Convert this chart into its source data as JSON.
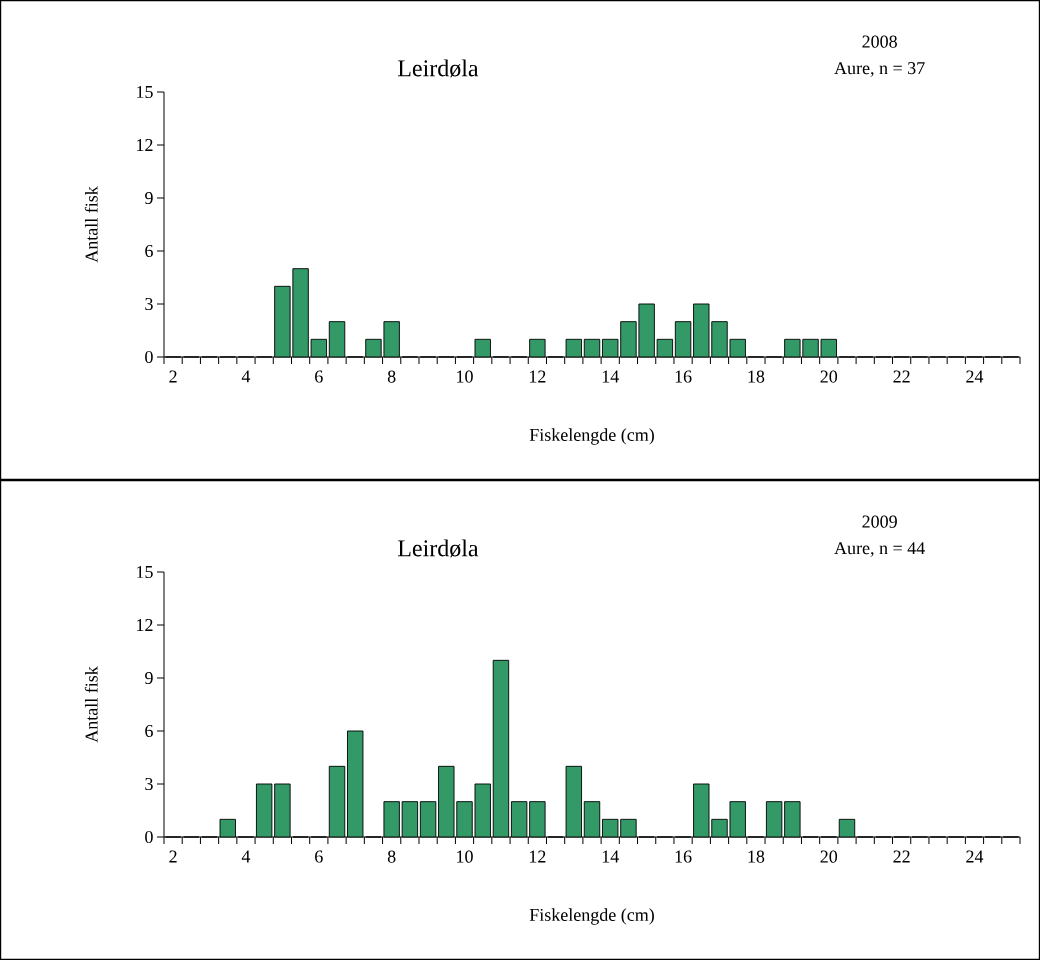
{
  "chart_data": [
    {
      "type": "bar",
      "title": "Leirdøla",
      "annotations": [
        "2008",
        "Aure, n = 37"
      ],
      "xlabel": "Fiskelengde (cm)",
      "ylabel": "Antall fisk",
      "categories": [
        "2",
        null,
        null,
        null,
        "4",
        null,
        null,
        null,
        "6",
        null,
        null,
        null,
        "8",
        null,
        null,
        null,
        "10",
        null,
        null,
        null,
        "12",
        null,
        null,
        null,
        "14",
        null,
        null,
        null,
        "16",
        null,
        null,
        null,
        "18",
        null,
        null,
        null,
        "20",
        null,
        null,
        null,
        "22",
        null,
        null,
        null,
        "24",
        null,
        null
      ],
      "values": [
        0,
        0,
        0,
        0,
        0,
        0,
        4,
        5,
        1,
        2,
        0,
        1,
        2,
        0,
        0,
        0,
        0,
        1,
        0,
        0,
        1,
        0,
        1,
        1,
        1,
        2,
        3,
        1,
        2,
        3,
        2,
        1,
        0,
        0,
        1,
        1,
        1,
        0,
        0,
        0,
        0,
        0,
        0,
        0,
        0,
        0,
        0
      ],
      "color": "#339966",
      "ylim": [
        0,
        15
      ],
      "yticks": [
        0,
        3,
        6,
        9,
        12,
        15
      ]
    },
    {
      "type": "bar",
      "title": "Leirdøla",
      "annotations": [
        "2009",
        "Aure, n = 44"
      ],
      "xlabel": "Fiskelengde (cm)",
      "ylabel": "Antall fisk",
      "categories": [
        "2",
        null,
        null,
        null,
        "4",
        null,
        null,
        null,
        "6",
        null,
        null,
        null,
        "8",
        null,
        null,
        null,
        "10",
        null,
        null,
        null,
        "12",
        null,
        null,
        null,
        "14",
        null,
        null,
        null,
        "16",
        null,
        null,
        null,
        "18",
        null,
        null,
        null,
        "20",
        null,
        null,
        null,
        "22",
        null,
        null,
        null,
        "24",
        null,
        null
      ],
      "values": [
        0,
        0,
        0,
        1,
        0,
        3,
        3,
        0,
        0,
        4,
        6,
        0,
        2,
        2,
        2,
        4,
        2,
        3,
        10,
        2,
        2,
        0,
        4,
        2,
        1,
        1,
        0,
        0,
        0,
        3,
        1,
        2,
        0,
        2,
        2,
        0,
        0,
        1,
        0,
        0,
        0,
        0,
        0,
        0,
        0,
        0,
        0
      ],
      "color": "#339966",
      "ylim": [
        0,
        15
      ],
      "yticks": [
        0,
        3,
        6,
        9,
        12,
        15
      ]
    }
  ]
}
